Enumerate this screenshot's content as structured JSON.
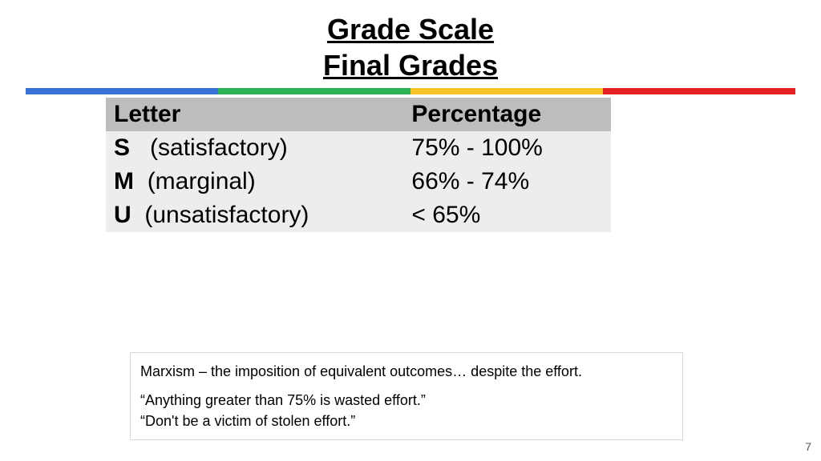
{
  "title": {
    "line1": "Grade Scale",
    "line2": "Final Grades",
    "fontsize": 36,
    "color": "#000000",
    "underline": true
  },
  "color_bar": {
    "segments": [
      "#3a6fd8",
      "#2fb357",
      "#f6c328",
      "#e62020"
    ],
    "height": 8
  },
  "table": {
    "header_bg": "#bdbdbd",
    "row_bg": "#ededed",
    "fontsize": 30,
    "columns": [
      "Letter",
      "Percentage"
    ],
    "rows": [
      {
        "letter": "S",
        "desc": "(satisfactory)",
        "pct": "75% - 100%"
      },
      {
        "letter": "M",
        "desc": "(marginal)",
        "pct": "66% - 74%"
      },
      {
        "letter": "U",
        "desc": "(unsatisfactory)",
        "pct": "< 65%"
      }
    ]
  },
  "note_box": {
    "border_color": "#d8d8d8",
    "fontsize": 18,
    "line1": "Marxism – the imposition of equivalent outcomes…   despite the effort.",
    "line2": "“Anything greater than 75% is wasted effort.”",
    "line3": "“Don't be a victim of stolen effort.”"
  },
  "page_number": "7"
}
